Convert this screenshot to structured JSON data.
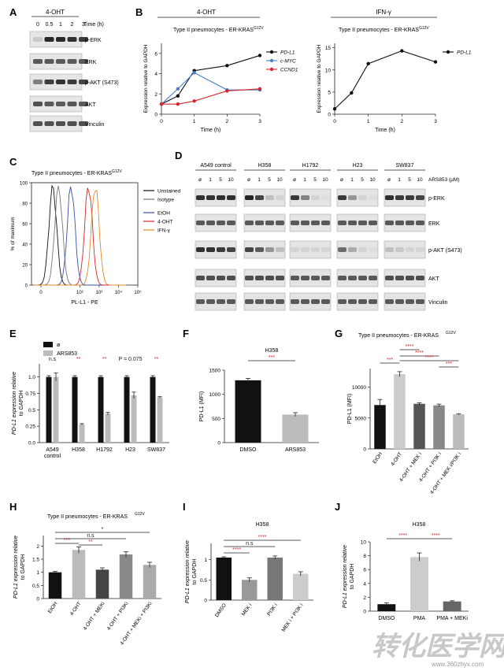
{
  "panels": {
    "A": {
      "letter": "A",
      "treatment": "4-OHT",
      "time_label": "Time (h)",
      "times": [
        "0",
        "0.5",
        "1",
        "2",
        "3"
      ],
      "rows": [
        "p-ERK",
        "ERK",
        "p-AKT (S473)",
        "AKT",
        "Vinculin"
      ],
      "band_intensity": [
        [
          0.15,
          0.95,
          0.95,
          0.9,
          0.85
        ],
        [
          0.7,
          0.7,
          0.7,
          0.7,
          0.7
        ],
        [
          0.5,
          0.85,
          0.9,
          0.85,
          0.8
        ],
        [
          0.75,
          0.7,
          0.7,
          0.72,
          0.7
        ],
        [
          0.75,
          0.75,
          0.75,
          0.75,
          0.75
        ]
      ]
    },
    "B": {
      "letter": "B",
      "left_header": "4-OHT",
      "right_header": "IFN-γ",
      "subtitle_base": "Type II pneumocytes - ER-KRAS",
      "subtitle_sup": "G12V"
    },
    "C": {
      "letter": "C",
      "title_base": "Type II pneumocytes - ER-KRAS",
      "title_sup": "G12V",
      "ylabel": "% of maximum",
      "xlabel": "PL-L1 - PE",
      "yticks": [
        "0",
        "20",
        "40",
        "60",
        "80",
        "100"
      ],
      "legend": [
        {
          "label": "Unstained",
          "color": "#111111"
        },
        {
          "label": "Isotype",
          "color": "#777777"
        },
        {
          "label": "EtOH",
          "color": "#3b4fa8"
        },
        {
          "label": "4-OHT",
          "color": "#d9262b"
        },
        {
          "label": "IFN-γ",
          "color": "#e08a2a"
        }
      ]
    },
    "D": {
      "letter": "D",
      "lines": [
        "A549 control",
        "H358",
        "H1792",
        "H23",
        "SW837"
      ],
      "conc_label": "ARS853 (μM)",
      "doses": [
        "ø",
        "1",
        "5",
        "10"
      ],
      "rows": [
        "p-ERK",
        "ERK",
        "p-AKT (S473)",
        "AKT",
        "Vinculin"
      ]
    },
    "E": {
      "letter": "E",
      "legend": [
        "ø",
        "ARS853"
      ],
      "ylabel_line1": "PD-L1 expression relative",
      "ylabel_line2": "to GAPDH",
      "sig": [
        {
          "text": "n.s",
          "red": false
        },
        {
          "text": "**",
          "red": true
        },
        {
          "text": "**",
          "red": true
        },
        {
          "text": "P = 0.075",
          "red": false
        },
        {
          "text": "**",
          "red": true
        }
      ]
    },
    "F": {
      "letter": "F",
      "title": "H358",
      "ylabel": "PD-L1 (MFI)",
      "sig": "***"
    },
    "G": {
      "letter": "G",
      "title_base": "Type II pneumocytes - ER-KRAS",
      "title_sup": "G12V",
      "ylabel": "PD-L1 (MFI)",
      "sigs": [
        "***",
        "****",
        "****",
        "****",
        "***"
      ]
    },
    "H": {
      "letter": "H",
      "title_base": "Type II pneumocytes - ER-KRAS",
      "title_sup": "G12V",
      "ylabel_line1": "PD-L1 expression relative",
      "ylabel_line2": "to GAPDH",
      "sigs": [
        "***",
        "**",
        "n.s",
        "*"
      ]
    },
    "I": {
      "letter": "I",
      "title": "H358",
      "ylabel_line1": "PD-L1 expression relative",
      "ylabel_line2": "to GAPDH",
      "sigs": [
        "****",
        "n.s",
        "****"
      ]
    },
    "J": {
      "letter": "J",
      "title": "H358",
      "ylabel_line1": "PD-L1 expression relative",
      "ylabel_line2": "to GAPDH",
      "sigs": [
        "****",
        "****"
      ]
    }
  },
  "watermark": {
    "main": "转化医学网",
    "url": "www.360zhyx.com"
  },
  "chart_data": [
    {
      "id": "B-left",
      "type": "line",
      "title": "Type II pneumocytes - ER-KRAS G12V",
      "xlabel": "Time (h)",
      "ylabel": "Expression relative to GAPDH",
      "x": [
        0,
        0.5,
        1,
        2,
        3
      ],
      "xlim": [
        0,
        3
      ],
      "ylim": [
        0,
        7
      ],
      "xticks": [
        0,
        1,
        2,
        3
      ],
      "yticks": [
        0,
        2,
        4,
        6
      ],
      "series": [
        {
          "name": "PD-L1",
          "color": "#111111",
          "values": [
            1.0,
            1.8,
            4.3,
            4.8,
            5.8
          ]
        },
        {
          "name": "c-MYC",
          "color": "#4a80c8",
          "values": [
            1.0,
            2.5,
            4.1,
            2.4,
            2.4
          ]
        },
        {
          "name": "CCND1",
          "color": "#d9262b",
          "values": [
            1.0,
            1.0,
            1.3,
            2.3,
            2.5
          ]
        }
      ]
    },
    {
      "id": "B-right",
      "type": "line",
      "title": "Type II pneumocytes - ER-KRAS G12V",
      "xlabel": "Time (h)",
      "ylabel": "Expression relative to GAPDH",
      "x": [
        0,
        0.5,
        1,
        2,
        3
      ],
      "xlim": [
        0,
        3
      ],
      "ylim": [
        0,
        16
      ],
      "xticks": [
        0,
        1,
        2,
        3
      ],
      "yticks": [
        0,
        5,
        10,
        15
      ],
      "series": [
        {
          "name": "PD-L1",
          "color": "#111111",
          "values": [
            1.2,
            4.8,
            11.4,
            14.3,
            11.8
          ]
        }
      ]
    },
    {
      "id": "C",
      "type": "line",
      "title": "Type II pneumocytes - ER-KRAS G12V",
      "xlabel": "PL-L1 - PE",
      "ylabel": "% of maximum",
      "xticks": [
        "0",
        "10²",
        "10³",
        "10⁴",
        "10⁵"
      ],
      "ylim": [
        0,
        100
      ],
      "series": [
        {
          "name": "Unstained",
          "peak": 0.6
        },
        {
          "name": "Isotype",
          "peak": 0.9
        },
        {
          "name": "EtOH",
          "peak": 1.55
        },
        {
          "name": "4-OHT",
          "peak": 2.45
        },
        {
          "name": "IFN-γ",
          "peak": 2.8
        }
      ]
    },
    {
      "id": "E",
      "type": "bar",
      "categories": [
        "A549\ncontrol",
        "H358",
        "H1792",
        "H23",
        "SW837"
      ],
      "ylim": [
        0,
        1.2
      ],
      "yticks": [
        0,
        0.25,
        0.5,
        0.75,
        1.0
      ],
      "series": [
        {
          "name": "ø",
          "color": "#111111",
          "values": [
            1.0,
            1.0,
            1.0,
            1.0,
            1.0
          ],
          "err": [
            0.02,
            0.02,
            0.02,
            0.02,
            0.02
          ]
        },
        {
          "name": "ARS853",
          "color": "#bbbbbb",
          "values": [
            1.0,
            0.28,
            0.44,
            0.72,
            0.69
          ],
          "err": [
            0.06,
            0.01,
            0.02,
            0.05,
            0.01
          ]
        }
      ]
    },
    {
      "id": "F",
      "type": "bar",
      "title": "H358",
      "ylabel": "PD-L1 (MFI)",
      "categories": [
        "DMSO",
        "ARS853"
      ],
      "ylim": [
        0,
        1500
      ],
      "yticks": [
        0,
        500,
        1000,
        1500
      ],
      "values": [
        1290,
        580
      ],
      "err": [
        40,
        40
      ],
      "colors": [
        "#111111",
        "#bbbbbb"
      ]
    },
    {
      "id": "G",
      "type": "bar",
      "title": "Type II pneumocytes - ER-KRAS G12V",
      "ylabel": "PD-L1 (MFI)",
      "categories": [
        "EtOH",
        "4-OHT",
        "4-OHT + MEK i",
        "4-OHT + PI3K i",
        "4-OHT + MEK i/PI3K i"
      ],
      "ylim": [
        0,
        13000
      ],
      "yticks": [
        0,
        5000,
        10000
      ],
      "values": [
        7100,
        12100,
        7300,
        7050,
        5600
      ],
      "err": [
        900,
        400,
        150,
        200,
        100
      ],
      "colors": [
        "#111111",
        "#cccccc",
        "#555555",
        "#888888",
        "#bbbbbb"
      ]
    },
    {
      "id": "H",
      "type": "bar",
      "title": "Type II pneumocytes - ER-KRAS G12V",
      "ylabel": "PD-L1 expression relative to GAPDH",
      "categories": [
        "EtOH",
        "4-OHT",
        "4-OHT + MEKi",
        "4-OHT + PI3Ki",
        "4-OHT + MEKi + PI3Ki"
      ],
      "ylim": [
        0,
        2.4
      ],
      "yticks": [
        0,
        0.5,
        1.0,
        1.5,
        2.0
      ],
      "values": [
        1.0,
        1.85,
        1.1,
        1.68,
        1.28
      ],
      "err": [
        0.03,
        0.12,
        0.07,
        0.1,
        0.1
      ],
      "colors": [
        "#111111",
        "#bbbbbb",
        "#444444",
        "#888888",
        "#aaaaaa"
      ]
    },
    {
      "id": "I",
      "type": "bar",
      "title": "H358",
      "ylabel": "PD-L1 expression relative to GAPDH",
      "categories": [
        "DMSO",
        "MEK i",
        "PI3K i",
        "MEK i + PI3K i"
      ],
      "ylim": [
        0,
        1.4
      ],
      "yticks": [
        0,
        0.5,
        1.0
      ],
      "values": [
        1.05,
        0.5,
        1.05,
        0.65
      ],
      "err": [
        0.02,
        0.05,
        0.04,
        0.05
      ],
      "colors": [
        "#111111",
        "#999999",
        "#777777",
        "#cccccc"
      ]
    },
    {
      "id": "J",
      "type": "bar",
      "title": "H358",
      "ylabel": "PD-L1 expression relative to GAPDH",
      "categories": [
        "DMSO",
        "PMA",
        "PMA + MEKi"
      ],
      "ylim": [
        0,
        10
      ],
      "yticks": [
        0,
        2,
        4,
        6,
        8,
        10
      ],
      "values": [
        1.0,
        7.8,
        1.4
      ],
      "err": [
        0.2,
        0.6,
        0.1
      ],
      "colors": [
        "#111111",
        "#cccccc",
        "#666666"
      ]
    }
  ]
}
